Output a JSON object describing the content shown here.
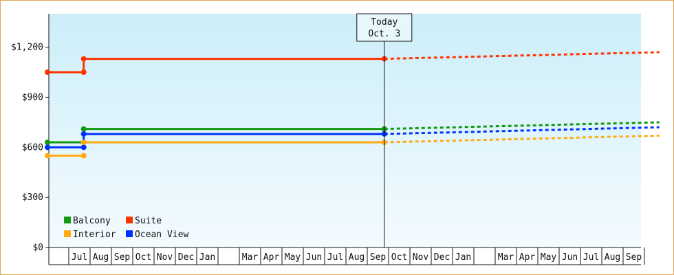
{
  "chart_data": {
    "type": "line",
    "title": "",
    "xlabel": "",
    "ylabel": "",
    "ylim": [
      0,
      1400
    ],
    "y_ticks": [
      {
        "value": 0,
        "label": "$0"
      },
      {
        "value": 300,
        "label": "$300"
      },
      {
        "value": 600,
        "label": "$600"
      },
      {
        "value": 900,
        "label": "$900"
      },
      {
        "value": 1200,
        "label": "$1,200"
      }
    ],
    "x_month_labels": [
      "",
      "Jul",
      "Aug",
      "Sep",
      "Oct",
      "Nov",
      "Dec",
      "Jan",
      "",
      "Mar",
      "Apr",
      "May",
      "Jun",
      "Jul",
      "Aug",
      "Sep",
      "Oct",
      "Nov",
      "Dec",
      "Jan",
      "",
      "Mar",
      "Apr",
      "May",
      "Jun",
      "Jul",
      "Aug",
      "Sep",
      ""
    ],
    "today_marker": {
      "line1": "Today",
      "line2": "Oct. 3"
    },
    "legend_position": "bottom-left",
    "grid": false,
    "series": [
      {
        "name": "Suite",
        "color": "#ff3300",
        "points": [
          [
            0,
            1050
          ],
          [
            1.7,
            1050
          ],
          [
            1.7,
            1130
          ],
          [
            15.8,
            1130
          ]
        ],
        "projection": [
          [
            15.8,
            1130
          ],
          [
            28.7,
            1170
          ]
        ]
      },
      {
        "name": "Balcony",
        "color": "#119911",
        "points": [
          [
            0,
            630
          ],
          [
            1.7,
            630
          ],
          [
            1.7,
            710
          ],
          [
            15.8,
            710
          ]
        ],
        "projection": [
          [
            15.8,
            710
          ],
          [
            28.7,
            750
          ]
        ]
      },
      {
        "name": "Ocean View",
        "color": "#0033ff",
        "points": [
          [
            0,
            600
          ],
          [
            1.7,
            600
          ],
          [
            1.7,
            680
          ],
          [
            15.8,
            680
          ]
        ],
        "projection": [
          [
            15.8,
            680
          ],
          [
            28.7,
            720
          ]
        ]
      },
      {
        "name": "Interior",
        "color": "#ffaa11",
        "points": [
          [
            0,
            550
          ],
          [
            1.7,
            550
          ]
        ],
        "points2": [
          [
            1.7,
            630
          ],
          [
            15.8,
            630
          ]
        ],
        "projection": [
          [
            15.8,
            630
          ],
          [
            28.7,
            670
          ]
        ]
      }
    ],
    "legend": [
      {
        "label": "Balcony",
        "color": "#119911"
      },
      {
        "label": "Suite",
        "color": "#ff3300"
      },
      {
        "label": "Interior",
        "color": "#ffaa11"
      },
      {
        "label": "Ocean View",
        "color": "#0033ff"
      }
    ]
  }
}
